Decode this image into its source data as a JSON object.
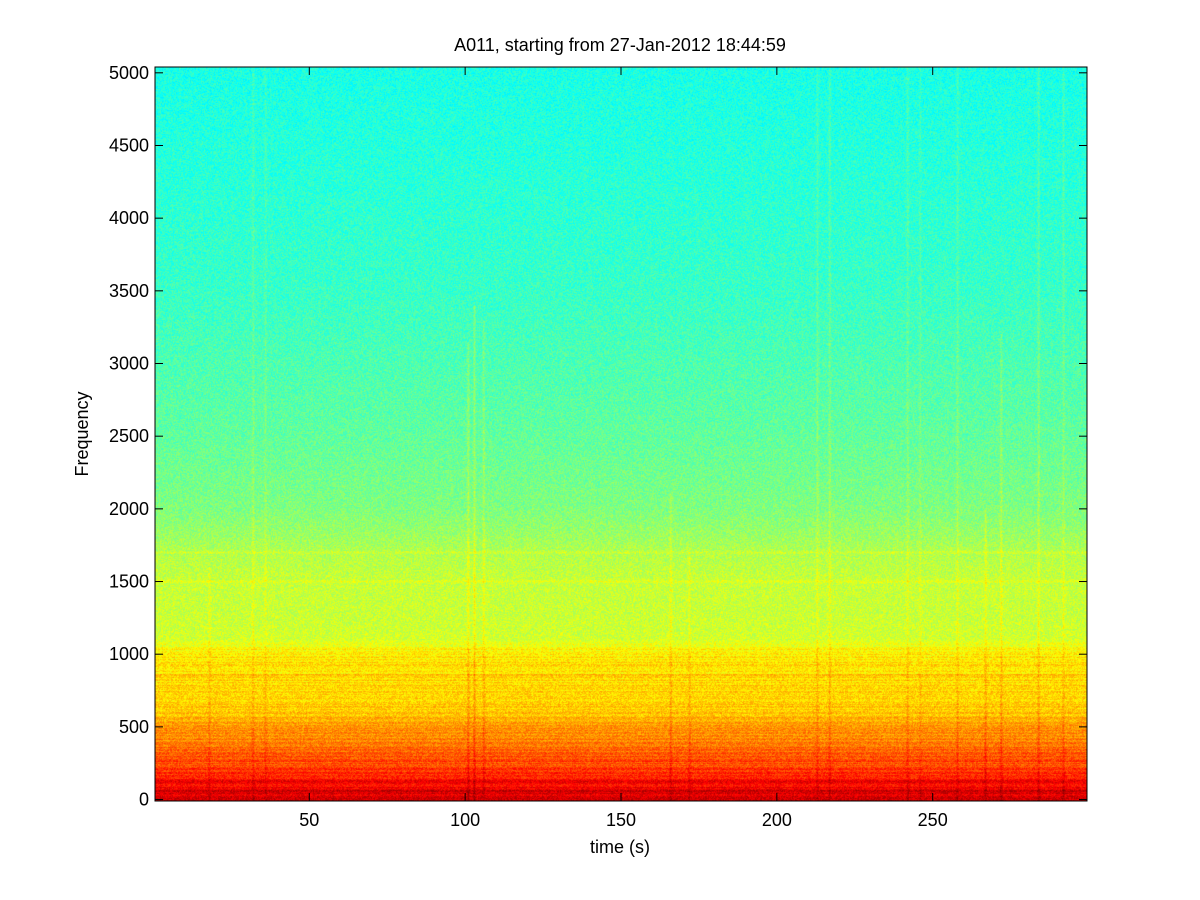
{
  "chart_data": {
    "type": "heatmap",
    "title": "A011, starting from 27-Jan-2012 18:44:59",
    "xlabel": "time (s)",
    "ylabel": "Frequency",
    "xlim": [
      0.5,
      299.5
    ],
    "ylim": [
      -10,
      5040
    ],
    "x_ticks": [
      50,
      100,
      150,
      200,
      250
    ],
    "y_ticks": [
      0,
      500,
      1000,
      1500,
      2000,
      2500,
      3000,
      3500,
      4000,
      4500,
      5000
    ],
    "grid": false,
    "legend": "none",
    "colormap": "jet",
    "frequency_profile": [
      {
        "freq": 0,
        "level": 0.92
      },
      {
        "freq": 50,
        "level": 0.9
      },
      {
        "freq": 100,
        "level": 0.86
      },
      {
        "freq": 200,
        "level": 0.82
      },
      {
        "freq": 300,
        "level": 0.79
      },
      {
        "freq": 400,
        "level": 0.75
      },
      {
        "freq": 500,
        "level": 0.72
      },
      {
        "freq": 600,
        "level": 0.68
      },
      {
        "freq": 700,
        "level": 0.66
      },
      {
        "freq": 800,
        "level": 0.66
      },
      {
        "freq": 900,
        "level": 0.65
      },
      {
        "freq": 1000,
        "level": 0.64
      },
      {
        "freq": 1060,
        "level": 0.62
      },
      {
        "freq": 1100,
        "level": 0.58
      },
      {
        "freq": 1300,
        "level": 0.57
      },
      {
        "freq": 1500,
        "level": 0.57
      },
      {
        "freq": 1700,
        "level": 0.55
      },
      {
        "freq": 1800,
        "level": 0.53
      },
      {
        "freq": 2000,
        "level": 0.5
      },
      {
        "freq": 2500,
        "level": 0.47
      },
      {
        "freq": 3000,
        "level": 0.45
      },
      {
        "freq": 3500,
        "level": 0.43
      },
      {
        "freq": 4000,
        "level": 0.42
      },
      {
        "freq": 4500,
        "level": 0.41
      },
      {
        "freq": 5040,
        "level": 0.4
      }
    ],
    "horizontal_bands": [
      {
        "freq": 120,
        "level": 0.9
      },
      {
        "freq": 60,
        "level": 0.93
      },
      {
        "freq": 1500,
        "level": 0.6
      },
      {
        "freq": 1700,
        "level": 0.58
      },
      {
        "freq": 850,
        "level": 0.7
      }
    ],
    "transient_events": [
      {
        "time": 18,
        "max_freq": 1600,
        "strength": 0.04
      },
      {
        "time": 32,
        "max_freq": 5040,
        "strength": 0.05
      },
      {
        "time": 36,
        "max_freq": 5040,
        "strength": 0.04
      },
      {
        "time": 101,
        "max_freq": 3150,
        "strength": 0.07
      },
      {
        "time": 103,
        "max_freq": 3400,
        "strength": 0.07
      },
      {
        "time": 106,
        "max_freq": 3300,
        "strength": 0.06
      },
      {
        "time": 166,
        "max_freq": 2100,
        "strength": 0.06
      },
      {
        "time": 172,
        "max_freq": 1700,
        "strength": 0.05
      },
      {
        "time": 213,
        "max_freq": 5040,
        "strength": 0.05
      },
      {
        "time": 217,
        "max_freq": 5040,
        "strength": 0.06
      },
      {
        "time": 242,
        "max_freq": 5040,
        "strength": 0.05
      },
      {
        "time": 246,
        "max_freq": 5040,
        "strength": 0.04
      },
      {
        "time": 258,
        "max_freq": 5040,
        "strength": 0.05
      },
      {
        "time": 267,
        "max_freq": 2000,
        "strength": 0.06
      },
      {
        "time": 272,
        "max_freq": 3200,
        "strength": 0.06
      },
      {
        "time": 284,
        "max_freq": 5040,
        "strength": 0.06
      },
      {
        "time": 292,
        "max_freq": 5040,
        "strength": 0.05
      }
    ]
  }
}
